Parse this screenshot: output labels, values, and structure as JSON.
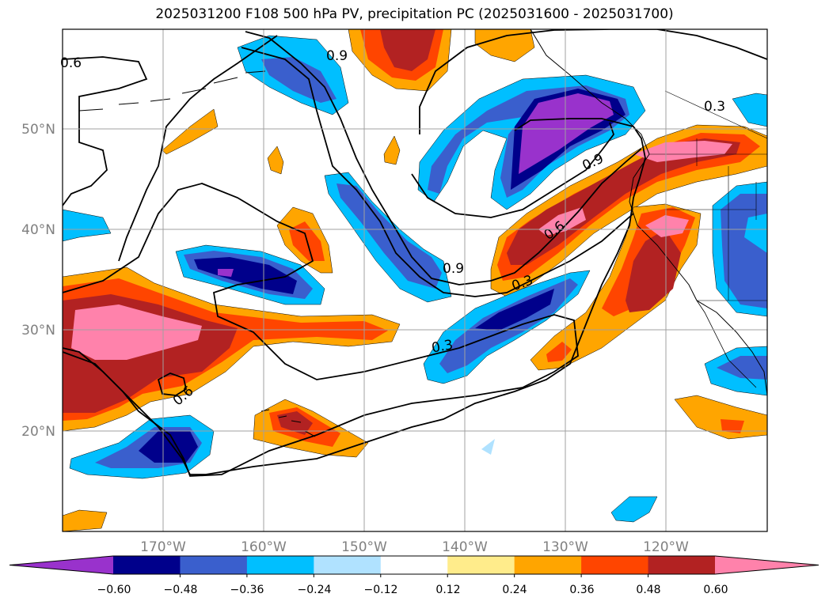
{
  "title": "2025031200 F108 500 hPa PV, precipitation PC (2025031600 - 2025031700)",
  "axes": {
    "lat_labels": [
      "50°N",
      "40°N",
      "30°N",
      "20°N"
    ],
    "lon_labels": [
      "170°W",
      "160°W",
      "150°W",
      "140°W",
      "130°W",
      "120°W"
    ],
    "tick_color": "#808080"
  },
  "contour_labels": [
    "0.6",
    "0.9",
    "0.3",
    "0.9",
    "0.6",
    "0.3",
    "0.9",
    "0.3",
    "0.6"
  ],
  "colorbar": {
    "colors": [
      "#9932cc",
      "#00008b",
      "#3a5fcd",
      "#00bfff",
      "#b0e2ff",
      "#ffffff",
      "#ffec8b",
      "#ffa500",
      "#ff4500",
      "#b22222",
      "#ff82ab"
    ],
    "tick_labels": [
      "−0.60",
      "−0.48",
      "−0.36",
      "−0.24",
      "−0.12",
      "0.12",
      "0.24",
      "0.36",
      "0.48",
      "0.60"
    ]
  }
}
